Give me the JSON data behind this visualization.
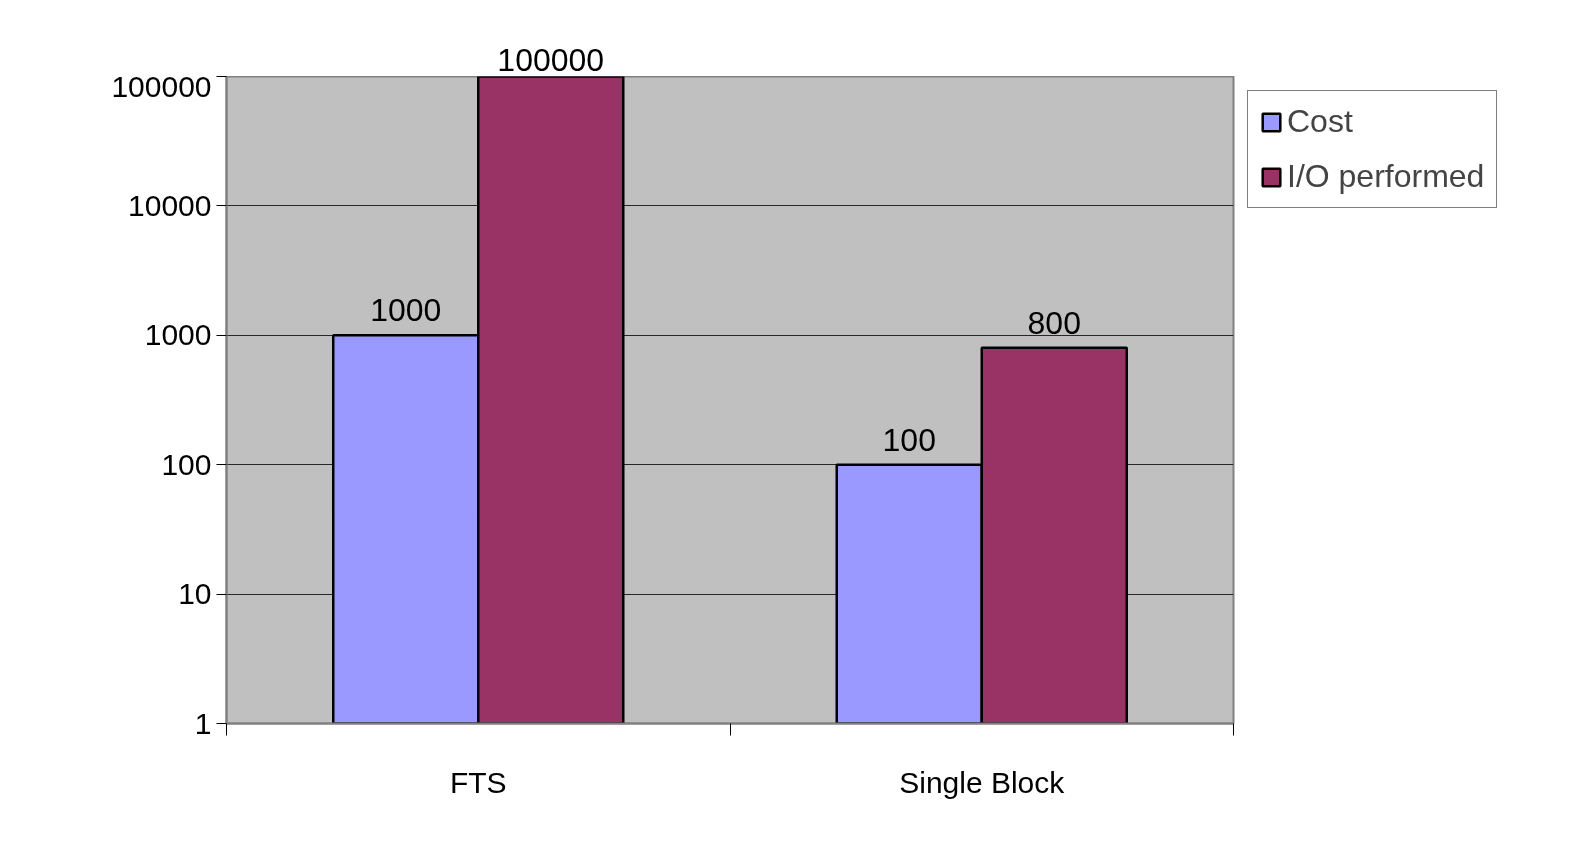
{
  "chart_data": {
    "type": "bar",
    "categories": [
      "FTS",
      "Single Block"
    ],
    "series": [
      {
        "name": "Cost",
        "color": "#9999ff",
        "values": [
          1000,
          100
        ]
      },
      {
        "name": "I/O performed",
        "color": "#993366",
        "values": [
          100000,
          800
        ]
      }
    ],
    "log": true,
    "ylim": [
      1,
      100000
    ],
    "yticks": [
      1,
      10,
      100,
      1000,
      10000,
      100000
    ],
    "grid": "y",
    "legend": "right",
    "data_labels": true
  }
}
